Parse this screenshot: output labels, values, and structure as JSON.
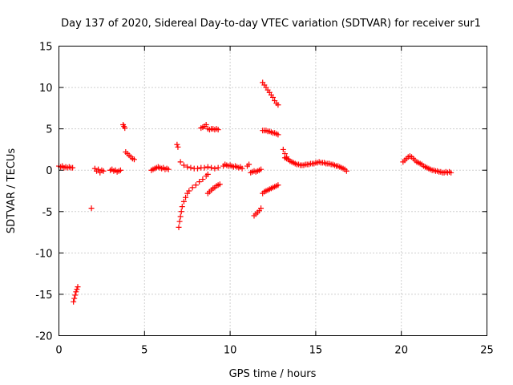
{
  "chart_data": {
    "type": "scatter",
    "title": "Day 137 of 2020, Sidereal Day-to-day VTEC variation (SDTVAR) for receiver sur1",
    "xlabel": "GPS time / hours",
    "ylabel": "SDTVAR / TECUs",
    "xlim": [
      0,
      25
    ],
    "ylim": [
      -20,
      15
    ],
    "xticks": [
      0,
      5,
      10,
      15,
      20,
      25
    ],
    "yticks": [
      -20,
      -15,
      -10,
      -5,
      0,
      5,
      10,
      15
    ],
    "xtick_labels": [
      "0",
      "5",
      "10",
      "15",
      "20",
      "25"
    ],
    "ytick_labels": [
      "-20",
      "-15",
      "-10",
      "-5",
      "0",
      "5",
      "10",
      "15"
    ],
    "grid": true,
    "marker": "+",
    "marker_color": "#ff0000",
    "series": [
      {
        "name": "sur1",
        "points": [
          [
            0.0,
            0.5
          ],
          [
            0.1,
            0.4
          ],
          [
            0.2,
            0.5
          ],
          [
            0.3,
            0.3
          ],
          [
            0.4,
            0.4
          ],
          [
            0.5,
            0.3
          ],
          [
            0.6,
            0.4
          ],
          [
            0.7,
            0.3
          ],
          [
            0.8,
            0.3
          ],
          [
            0.85,
            -15.9
          ],
          [
            0.9,
            -15.5
          ],
          [
            0.95,
            -15.1
          ],
          [
            1.0,
            -14.7
          ],
          [
            1.05,
            -14.4
          ],
          [
            1.1,
            -14.1
          ],
          [
            1.9,
            -4.6
          ],
          [
            2.1,
            0.2
          ],
          [
            2.2,
            -0.1
          ],
          [
            2.3,
            0.1
          ],
          [
            2.4,
            -0.3
          ],
          [
            2.5,
            0.0
          ],
          [
            2.6,
            -0.1
          ],
          [
            3.0,
            0.0
          ],
          [
            3.1,
            0.1
          ],
          [
            3.2,
            -0.1
          ],
          [
            3.3,
            0.0
          ],
          [
            3.4,
            -0.2
          ],
          [
            3.5,
            -0.1
          ],
          [
            3.6,
            0.0
          ],
          [
            3.75,
            5.5
          ],
          [
            3.8,
            5.3
          ],
          [
            3.85,
            5.1
          ],
          [
            3.9,
            2.2
          ],
          [
            4.0,
            2.0
          ],
          [
            4.1,
            1.8
          ],
          [
            4.2,
            1.6
          ],
          [
            4.3,
            1.4
          ],
          [
            4.4,
            1.3
          ],
          [
            5.4,
            0.0
          ],
          [
            5.5,
            0.1
          ],
          [
            5.6,
            0.2
          ],
          [
            5.7,
            0.3
          ],
          [
            5.8,
            0.4
          ],
          [
            5.9,
            0.3
          ],
          [
            6.0,
            0.2
          ],
          [
            6.1,
            0.3
          ],
          [
            6.2,
            0.1
          ],
          [
            6.3,
            0.2
          ],
          [
            6.4,
            0.1
          ],
          [
            6.9,
            3.1
          ],
          [
            6.95,
            2.8
          ],
          [
            7.0,
            -6.9
          ],
          [
            7.05,
            -6.2
          ],
          [
            7.1,
            -5.6
          ],
          [
            7.15,
            -5.0
          ],
          [
            7.2,
            -4.4
          ],
          [
            7.3,
            -3.8
          ],
          [
            7.4,
            -3.3
          ],
          [
            7.5,
            -2.8
          ],
          [
            7.6,
            -2.5
          ],
          [
            7.8,
            -2.1
          ],
          [
            8.0,
            -1.8
          ],
          [
            8.2,
            -1.4
          ],
          [
            8.4,
            -1.1
          ],
          [
            8.6,
            -0.7
          ],
          [
            8.7,
            -0.5
          ],
          [
            7.1,
            1.0
          ],
          [
            7.3,
            0.6
          ],
          [
            7.5,
            0.4
          ],
          [
            7.7,
            0.3
          ],
          [
            7.9,
            0.2
          ],
          [
            8.1,
            0.2
          ],
          [
            8.3,
            0.3
          ],
          [
            8.5,
            0.3
          ],
          [
            8.7,
            0.4
          ],
          [
            8.9,
            0.3
          ],
          [
            9.1,
            0.2
          ],
          [
            9.3,
            0.3
          ],
          [
            8.3,
            5.1
          ],
          [
            8.4,
            5.2
          ],
          [
            8.5,
            5.3
          ],
          [
            8.6,
            5.5
          ],
          [
            8.7,
            5.0
          ],
          [
            8.8,
            4.9
          ],
          [
            8.9,
            5.0
          ],
          [
            9.0,
            5.0
          ],
          [
            9.1,
            4.9
          ],
          [
            9.2,
            5.0
          ],
          [
            9.3,
            4.9
          ],
          [
            8.7,
            -2.8
          ],
          [
            8.8,
            -2.6
          ],
          [
            8.9,
            -2.4
          ],
          [
            9.0,
            -2.2
          ],
          [
            9.1,
            -2.1
          ],
          [
            9.2,
            -1.9
          ],
          [
            9.3,
            -1.8
          ],
          [
            9.4,
            -1.7
          ],
          [
            9.6,
            0.5
          ],
          [
            9.7,
            0.7
          ],
          [
            9.8,
            0.6
          ],
          [
            9.9,
            0.5
          ],
          [
            10.0,
            0.6
          ],
          [
            10.1,
            0.5
          ],
          [
            10.2,
            0.4
          ],
          [
            10.3,
            0.5
          ],
          [
            10.4,
            0.4
          ],
          [
            10.5,
            0.3
          ],
          [
            10.6,
            0.4
          ],
          [
            10.7,
            0.2
          ],
          [
            11.0,
            0.5
          ],
          [
            11.1,
            0.7
          ],
          [
            11.2,
            -0.3
          ],
          [
            11.3,
            -0.2
          ],
          [
            11.4,
            -0.1
          ],
          [
            11.5,
            -0.2
          ],
          [
            11.6,
            -0.1
          ],
          [
            11.7,
            0.0
          ],
          [
            11.8,
            0.1
          ],
          [
            11.4,
            -5.5
          ],
          [
            11.5,
            -5.3
          ],
          [
            11.6,
            -5.1
          ],
          [
            11.7,
            -4.9
          ],
          [
            11.8,
            -4.6
          ],
          [
            11.9,
            10.6
          ],
          [
            12.0,
            10.3
          ],
          [
            12.1,
            10.0
          ],
          [
            12.2,
            9.7
          ],
          [
            12.3,
            9.4
          ],
          [
            12.4,
            9.1
          ],
          [
            12.5,
            8.8
          ],
          [
            12.6,
            8.4
          ],
          [
            12.7,
            8.1
          ],
          [
            12.8,
            7.9
          ],
          [
            11.9,
            4.8
          ],
          [
            12.0,
            4.8
          ],
          [
            12.1,
            4.8
          ],
          [
            12.2,
            4.7
          ],
          [
            12.3,
            4.7
          ],
          [
            12.4,
            4.6
          ],
          [
            12.5,
            4.5
          ],
          [
            12.6,
            4.5
          ],
          [
            12.7,
            4.4
          ],
          [
            12.8,
            4.3
          ],
          [
            11.9,
            -2.8
          ],
          [
            12.0,
            -2.6
          ],
          [
            12.1,
            -2.5
          ],
          [
            12.2,
            -2.4
          ],
          [
            12.3,
            -2.3
          ],
          [
            12.4,
            -2.2
          ],
          [
            12.5,
            -2.1
          ],
          [
            12.6,
            -2.0
          ],
          [
            12.7,
            -1.9
          ],
          [
            12.8,
            -1.8
          ],
          [
            13.1,
            2.5
          ],
          [
            13.2,
            2.0
          ],
          [
            13.3,
            1.6
          ],
          [
            13.4,
            1.3
          ],
          [
            13.5,
            1.1
          ],
          [
            13.6,
            1.0
          ],
          [
            13.7,
            0.9
          ],
          [
            13.8,
            0.8
          ],
          [
            13.9,
            0.7
          ],
          [
            14.0,
            0.7
          ],
          [
            14.1,
            0.6
          ],
          [
            14.2,
            0.6
          ],
          [
            14.3,
            0.6
          ],
          [
            14.4,
            0.7
          ],
          [
            14.5,
            0.7
          ],
          [
            14.6,
            0.7
          ],
          [
            14.7,
            0.8
          ],
          [
            14.8,
            0.8
          ],
          [
            14.9,
            0.8
          ],
          [
            15.0,
            0.9
          ],
          [
            15.1,
            0.9
          ],
          [
            15.2,
            1.0
          ],
          [
            15.3,
            0.9
          ],
          [
            15.4,
            0.9
          ],
          [
            15.5,
            0.9
          ],
          [
            15.6,
            0.8
          ],
          [
            15.7,
            0.8
          ],
          [
            15.8,
            0.8
          ],
          [
            15.9,
            0.7
          ],
          [
            16.0,
            0.7
          ],
          [
            16.1,
            0.6
          ],
          [
            16.2,
            0.5
          ],
          [
            16.3,
            0.5
          ],
          [
            16.4,
            0.4
          ],
          [
            16.5,
            0.3
          ],
          [
            16.6,
            0.2
          ],
          [
            16.7,
            0.1
          ],
          [
            16.8,
            -0.1
          ],
          [
            13.2,
            1.5
          ],
          [
            13.3,
            1.4
          ],
          [
            13.4,
            1.3
          ],
          [
            20.1,
            1.0
          ],
          [
            20.2,
            1.2
          ],
          [
            20.3,
            1.4
          ],
          [
            20.4,
            1.6
          ],
          [
            20.5,
            1.7
          ],
          [
            20.6,
            1.6
          ],
          [
            20.7,
            1.4
          ],
          [
            20.8,
            1.2
          ],
          [
            20.9,
            1.0
          ],
          [
            21.0,
            0.9
          ],
          [
            21.1,
            0.8
          ],
          [
            21.2,
            0.7
          ],
          [
            21.3,
            0.5
          ],
          [
            21.4,
            0.4
          ],
          [
            21.5,
            0.3
          ],
          [
            21.6,
            0.2
          ],
          [
            21.7,
            0.1
          ],
          [
            21.8,
            0.0
          ],
          [
            21.9,
            0.0
          ],
          [
            22.0,
            -0.1
          ],
          [
            22.1,
            -0.1
          ],
          [
            22.2,
            -0.2
          ],
          [
            22.3,
            -0.2
          ],
          [
            22.4,
            -0.3
          ],
          [
            22.5,
            -0.3
          ],
          [
            22.6,
            -0.2
          ],
          [
            22.7,
            -0.3
          ],
          [
            22.8,
            -0.2
          ],
          [
            22.9,
            -0.3
          ]
        ]
      }
    ]
  }
}
